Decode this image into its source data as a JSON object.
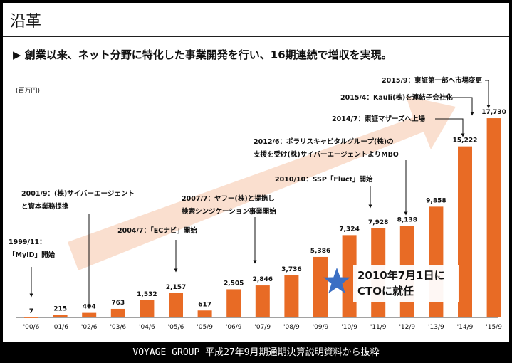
{
  "slide_title": "沿革",
  "headline": "▶ 創業以来、ネット分野に特化した事業開発を行い、16期連続で増収を実現。",
  "footer": "VOYAGE GROUP 平成27年9月期通期決算説明資料から抜粋",
  "colors": {
    "bar": "#e86b25",
    "arrow": "#f9d9c7",
    "star": "#3b6fc4"
  },
  "chart_data": {
    "type": "bar",
    "unit_label": "(百万円)",
    "categories": [
      "'00/6",
      "'01/6",
      "'02/6",
      "'03/6",
      "'04/6",
      "'05/6",
      "'05/9",
      "'06/9",
      "'07/9",
      "'08/9",
      "'09/9",
      "'10/9",
      "'11/9",
      "'12/9",
      "'13/9",
      "'14/9",
      "'15/9"
    ],
    "values": [
      7,
      215,
      404,
      763,
      1532,
      2157,
      617,
      2505,
      2846,
      3736,
      5386,
      7324,
      7928,
      8138,
      9858,
      15222,
      17730
    ],
    "value_labels": [
      "7",
      "215",
      "404",
      "763",
      "1,532",
      "2,157",
      "617",
      "2,505",
      "2,846",
      "3,736",
      "5,386",
      "7,324",
      "7,928",
      "8,138",
      "9,858",
      "15,222",
      "17,730"
    ],
    "ylim": [
      0,
      19000
    ],
    "callout": [
      "2010年7月1日に",
      "CTOに就任"
    ],
    "annotations": [
      {
        "lines": [
          "1999/11：",
          "「MyID」開始"
        ],
        "target": 0
      },
      {
        "lines": [
          "2001/9：(株)サイバーエージェント",
          "と資本業務提携"
        ],
        "target": 2
      },
      {
        "lines": [
          "2004/7：「ECナビ」開始"
        ],
        "target": 5
      },
      {
        "lines": [
          "2007/7：ヤフー(株)と提携し",
          "検索シンジケーション事業開始"
        ],
        "target": 8
      },
      {
        "lines": [
          "2010/10：SSP「Fluct」開始"
        ],
        "target": 12
      },
      {
        "lines": [
          "2012/6：ポラリスキャピタルグループ(株)の",
          "支援を受け(株)サイバーエージェントよりMBO"
        ],
        "target": 13
      },
      {
        "lines": [
          "2014/7：東証マザーズへ上場"
        ],
        "target": 15
      },
      {
        "lines": [
          "2015/4：Kauli(株)を連結子会社化"
        ],
        "target": 15
      },
      {
        "lines": [
          "2015/9：東証第一部へ市場変更"
        ],
        "target": 16
      }
    ]
  }
}
